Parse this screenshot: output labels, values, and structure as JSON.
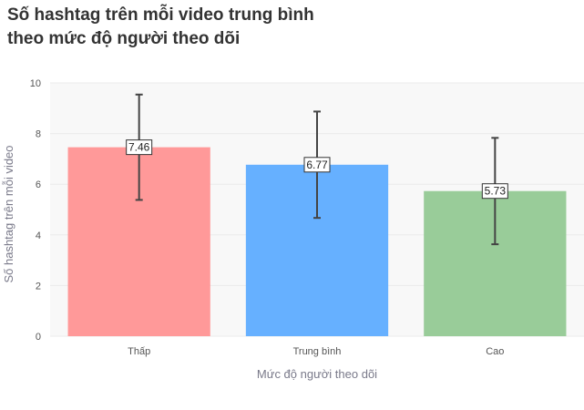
{
  "title_line1": "Số hashtag trên mỗi video trung bình",
  "title_line2": "theo mức độ người theo dõi",
  "chart_data": {
    "type": "bar",
    "categories": [
      "Thấp",
      "Trung bình",
      "Cao"
    ],
    "values": [
      7.46,
      6.77,
      5.73
    ],
    "value_labels": [
      "7.46",
      "6.77",
      "5.73"
    ],
    "error_low": [
      5.38,
      4.67,
      3.63
    ],
    "error_high": [
      9.54,
      8.87,
      7.83
    ],
    "colors": [
      "#ff9999",
      "#66b0ff",
      "#99cc99"
    ],
    "xlabel": "Mức độ người theo dõi",
    "ylabel": "Số hashtag trên mỗi video",
    "ylim": [
      0,
      10
    ],
    "yticks": [
      0,
      2,
      4,
      6,
      8,
      10
    ],
    "ytick_labels": [
      "0",
      "2",
      "4",
      "6",
      "8",
      "10"
    ],
    "grid": true,
    "plot_background": "#f8f8f8"
  }
}
